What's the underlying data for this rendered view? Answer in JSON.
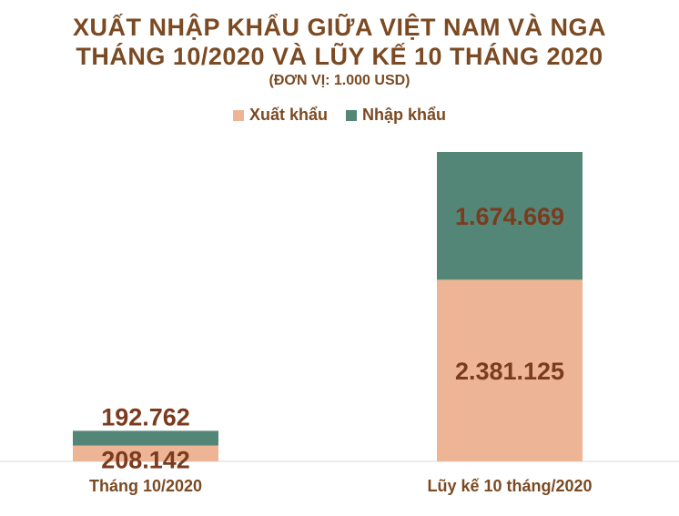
{
  "title_line1": "XUẤT NHẬP KHẨU GIỮA VIỆT NAM VÀ NGA",
  "title_line2": "THÁNG 10/2020 VÀ LŨY KẾ 10 THÁNG 2020",
  "unit": "(ĐƠN VỊ: 1.000 USD)",
  "colors": {
    "export": "#edb595",
    "import": "#548677",
    "text": "#7b4a23"
  },
  "chart_data": {
    "type": "bar",
    "stacked": true,
    "categories": [
      "Tháng 10/2020",
      "Lũy kế 10 tháng/2020"
    ],
    "series": [
      {
        "name": "Xuất khẩu",
        "values": [
          208142,
          2381125
        ],
        "labels": [
          "208.142",
          "2.381.125"
        ]
      },
      {
        "name": "Nhập khẩu",
        "values": [
          192762,
          1674669
        ],
        "labels": [
          "192.762",
          "1.674.669"
        ]
      }
    ],
    "legend_position": "top",
    "grid": false
  }
}
